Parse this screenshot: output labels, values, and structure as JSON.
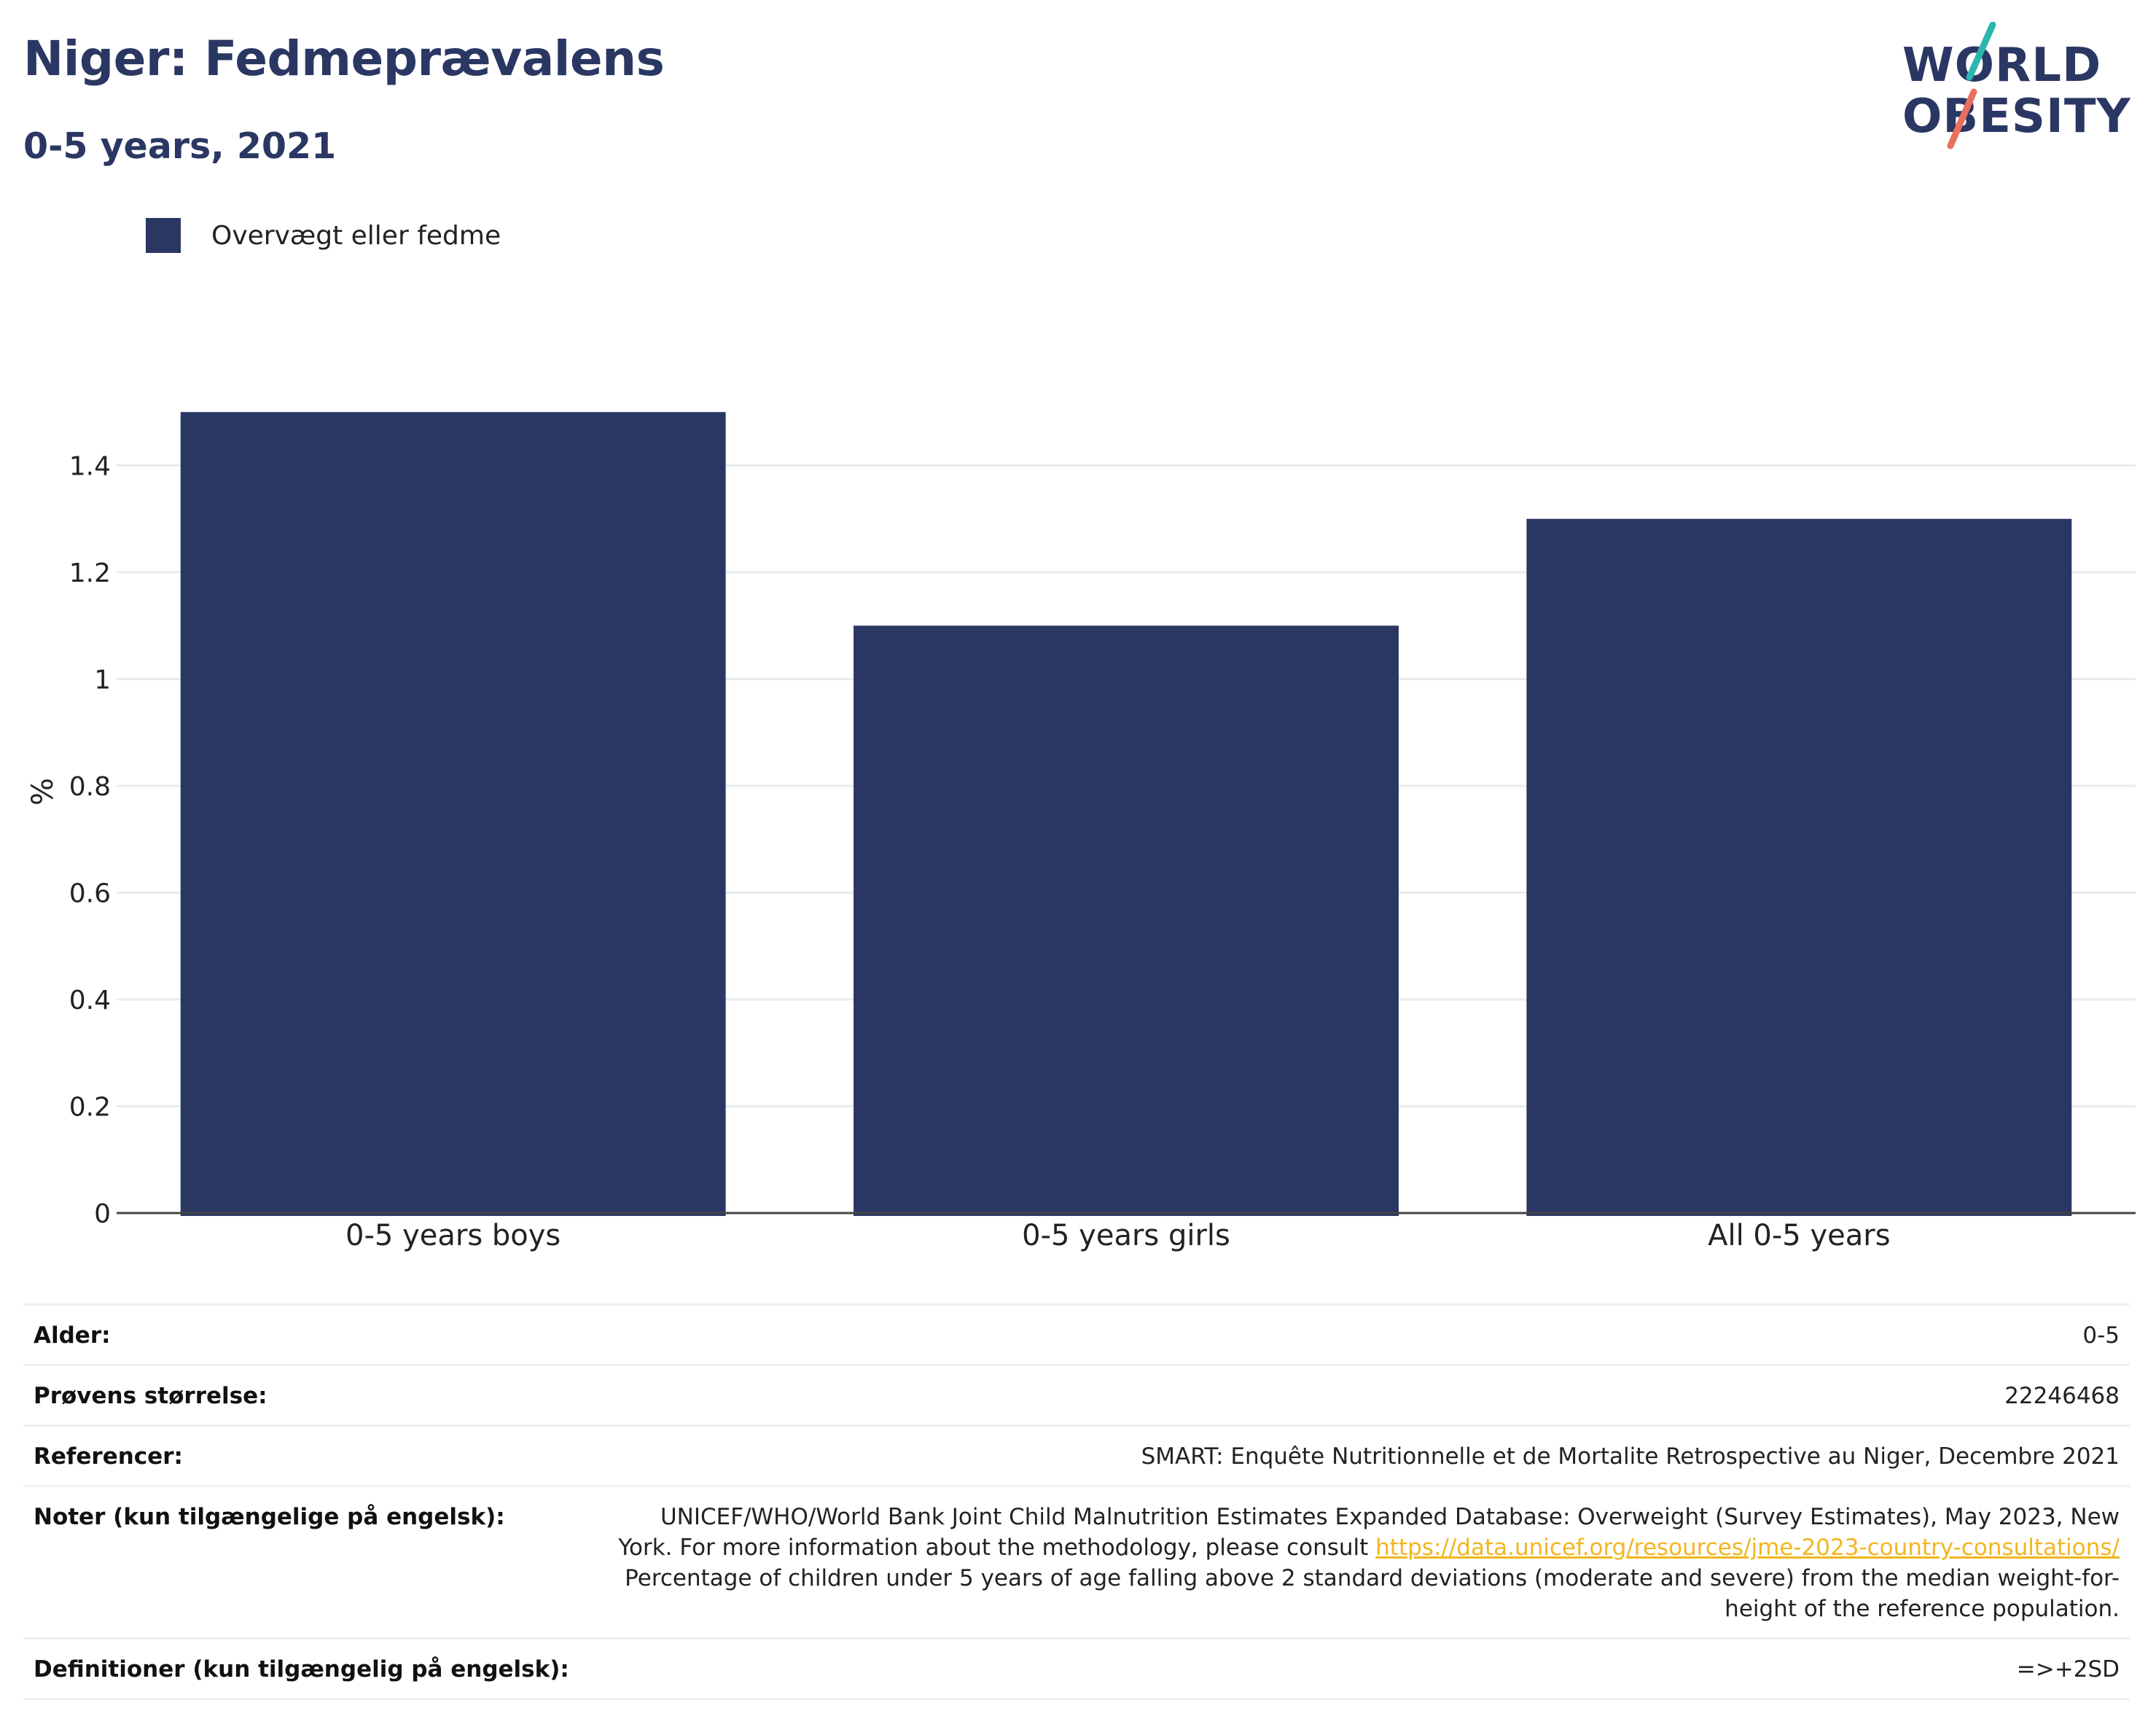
{
  "header": {
    "title": "Niger: Fedmeprævalens",
    "subtitle": "0-5 years, 2021"
  },
  "logo": {
    "line1": "WORLD",
    "line2": "OBESITY",
    "colors": {
      "text": "#2b3763",
      "teal": "#2bb7b0",
      "coral": "#e8705c"
    }
  },
  "legend": {
    "label": "Overvægt eller fedme",
    "color": "#2b3763"
  },
  "chart_data": {
    "type": "bar",
    "categories": [
      "0-5 years boys",
      "0-5 years girls",
      "All 0-5 years"
    ],
    "series": [
      {
        "name": "Overvægt eller fedme",
        "values": [
          1.5,
          1.1,
          1.3
        ],
        "color": "#2b3763"
      }
    ],
    "ylabel": "%",
    "ylim": [
      0,
      1.5
    ],
    "yticks": [
      0,
      0.2,
      0.4,
      0.6,
      0.8,
      1,
      1.2,
      1.4
    ],
    "ytick_labels": [
      "0",
      "0.2",
      "0.4",
      "0.6",
      "0.8",
      "1",
      "1.2",
      "1.4"
    ],
    "grid": true,
    "legend_position": "top-left"
  },
  "info": {
    "age_label": "Alder:",
    "age_value": "0-5",
    "sample_label": "Prøvens størrelse:",
    "sample_value": "22246468",
    "refs_label": "Referencer:",
    "refs_value": "SMART: Enquête Nutritionnelle et de Mortalite Retrospective au Niger, Decembre 2021",
    "notes_label": "Noter (kun tilgængelige på engelsk):",
    "notes_text_1": "UNICEF/WHO/World Bank Joint Child Malnutrition Estimates Expanded Database: Overweight (Survey Estimates), May 2023, New York. For more information about the methodology, please consult ",
    "notes_link": "https://data.unicef.org/resources/jme-2023-country-consultations/",
    "notes_text_2": " Percentage of children under 5 years of age falling above 2 standard deviations (moderate and severe) from the median weight-for-height of the reference population.",
    "defs_label": "Definitioner (kun tilgængelig på engelsk):",
    "defs_value": "=>+2SD"
  }
}
